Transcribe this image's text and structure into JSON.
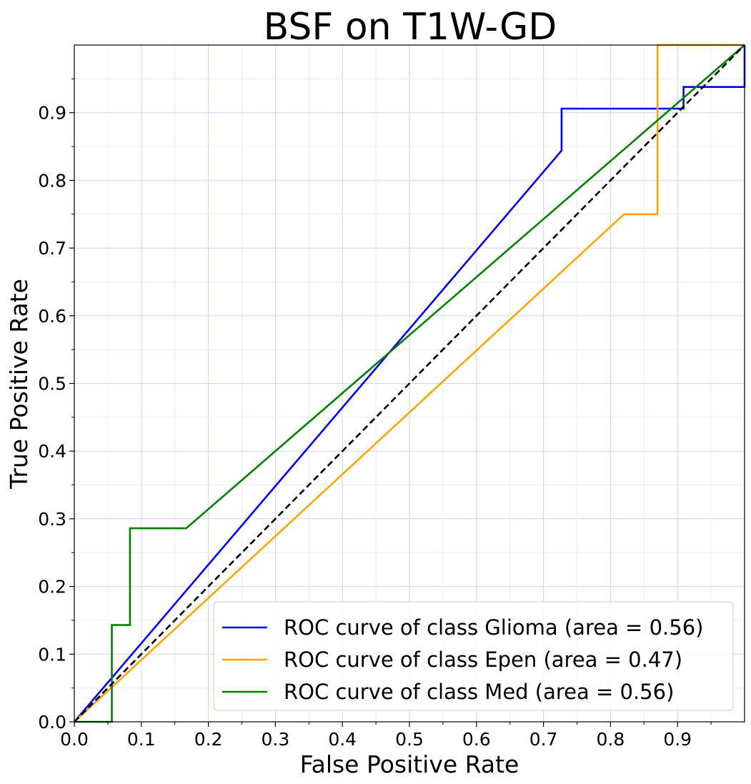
{
  "chart_data": {
    "type": "line",
    "title": "BSF on T1W-GD",
    "xlabel": "False Positive Rate",
    "ylabel": "True Positive Rate",
    "xlim": [
      0.0,
      1.0
    ],
    "ylim": [
      0.0,
      1.0
    ],
    "xticks": [
      "0.0",
      "0.1",
      "0.2",
      "0.3",
      "0.4",
      "0.5",
      "0.6",
      "0.7",
      "0.8",
      "0.9"
    ],
    "yticks": [
      "0.0",
      "0.1",
      "0.2",
      "0.3",
      "0.4",
      "0.5",
      "0.6",
      "0.7",
      "0.8",
      "0.9"
    ],
    "grid": true,
    "legend_position": "lower-right",
    "series": [
      {
        "name": "ROC curve of class Glioma (area = 0.56)",
        "color": "#0000ff",
        "x": [
          0.0,
          0.727,
          0.727,
          0.909,
          0.909,
          1.0,
          1.0
        ],
        "y": [
          0.0,
          0.844,
          0.906,
          0.906,
          0.938,
          0.938,
          1.0
        ]
      },
      {
        "name": "ROC curve of class Epen (area = 0.47)",
        "color": "#ffa500",
        "x": [
          0.0,
          0.82,
          0.87,
          0.87,
          1.0
        ],
        "y": [
          0.0,
          0.75,
          0.75,
          1.0,
          1.0
        ]
      },
      {
        "name": "ROC curve of class Med (area = 0.56)",
        "color": "#008000",
        "x": [
          0.0,
          0.056,
          0.056,
          0.083,
          0.083,
          0.167,
          1.0
        ],
        "y": [
          0.0,
          0.0,
          0.143,
          0.143,
          0.286,
          0.286,
          1.0
        ]
      },
      {
        "name": "",
        "color": "#000000",
        "dashed": true,
        "x": [
          0.0,
          1.0
        ],
        "y": [
          0.0,
          1.0
        ]
      }
    ]
  }
}
